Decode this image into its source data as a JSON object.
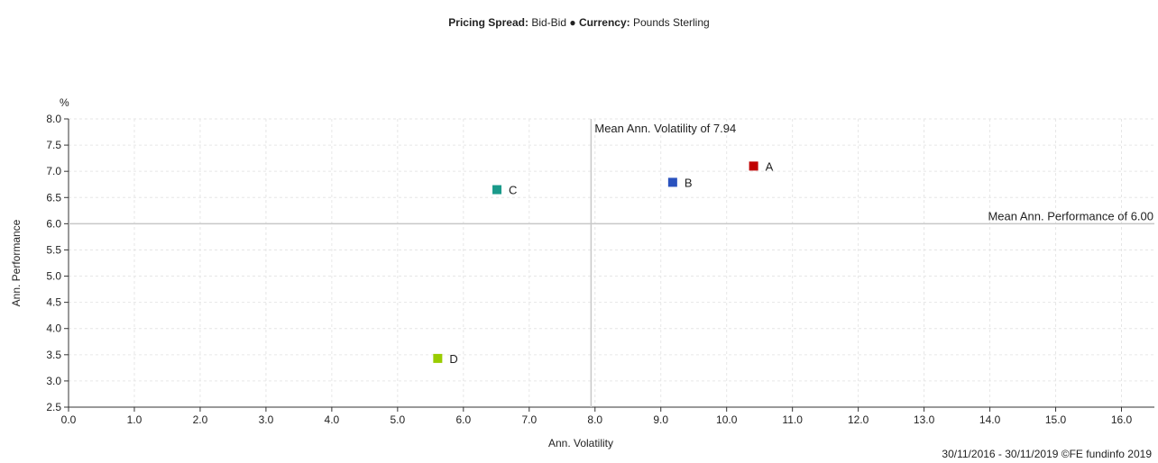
{
  "header": {
    "spread_label": "Pricing Spread:",
    "spread_value": "Bid-Bid",
    "separator": "●",
    "currency_label": "Currency:",
    "currency_value": "Pounds Sterling"
  },
  "footer": {
    "text": "30/11/2016 - 30/11/2019 ©FE fundinfo 2019"
  },
  "chart_data": {
    "type": "scatter",
    "xlabel": "Ann. Volatility",
    "ylabel": "Ann. Performance",
    "yunit": "%",
    "xlim": [
      0,
      16.5
    ],
    "ylim": [
      2.5,
      8.0
    ],
    "xticks": [
      "0.0",
      "1.0",
      "2.0",
      "3.0",
      "4.0",
      "5.0",
      "6.0",
      "7.0",
      "8.0",
      "9.0",
      "10.0",
      "11.0",
      "12.0",
      "13.0",
      "14.0",
      "15.0",
      "16.0"
    ],
    "yticks": [
      "2.5",
      "3.0",
      "3.5",
      "4.0",
      "4.5",
      "5.0",
      "5.5",
      "6.0",
      "6.5",
      "7.0",
      "7.5",
      "8.0"
    ],
    "grid": true,
    "points": [
      {
        "label": "A",
        "x": 10.41,
        "y": 7.1,
        "color": "#c00000"
      },
      {
        "label": "B",
        "x": 9.18,
        "y": 6.79,
        "color": "#2a52be"
      },
      {
        "label": "C",
        "x": 6.51,
        "y": 6.65,
        "color": "#1a9a8a"
      },
      {
        "label": "D",
        "x": 5.61,
        "y": 3.43,
        "color": "#99cc00"
      }
    ],
    "mean_lines": {
      "volatility": {
        "value": 7.94,
        "label": "Mean Ann. Volatility of 7.94"
      },
      "performance": {
        "value": 6.0,
        "label": "Mean Ann. Performance of 6.00"
      }
    }
  }
}
